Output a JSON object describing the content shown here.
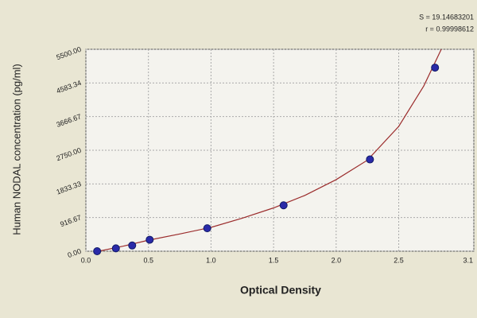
{
  "chart_data": {
    "type": "scatter",
    "x_label": "Optical Density",
    "y_label": "Human NODAL concentration (pg/ml)",
    "annotations": [
      "S = 19.14683201",
      "r = 0.99998612"
    ],
    "xlim": [
      0,
      3.1
    ],
    "xticks": [
      {
        "value": 0,
        "label": "0.0"
      },
      0.5,
      {
        "value": 1,
        "label": "1.0"
      },
      1.5,
      {
        "value": 2,
        "label": "2.0"
      },
      2.5,
      3.1
    ],
    "ylim": [
      0,
      5500
    ],
    "yticks": [
      {
        "value": 0,
        "label": "0.00"
      },
      916.67,
      1833.33,
      {
        "value": 2750,
        "label": "2750.00"
      },
      3666.67,
      4583.34,
      {
        "value": 5500,
        "label": "5500.00"
      }
    ],
    "grid": true,
    "points": {
      "color": "#2a2aa8",
      "x": [
        0.09,
        0.24,
        0.37,
        0.51,
        0.97,
        1.58,
        2.27,
        2.79
      ],
      "values": [
        0,
        78,
        156,
        312,
        625,
        1250,
        2500,
        5000
      ]
    },
    "curve": {
      "color": "#9b2c2c",
      "x": [
        0.1,
        0.3,
        0.5,
        0.75,
        1.0,
        1.25,
        1.5,
        1.75,
        2.0,
        2.25,
        2.5,
        2.7,
        2.84
      ],
      "values": [
        0,
        140,
        300,
        470,
        650,
        900,
        1180,
        1520,
        1950,
        2480,
        3400,
        4500,
        5500
      ]
    }
  }
}
